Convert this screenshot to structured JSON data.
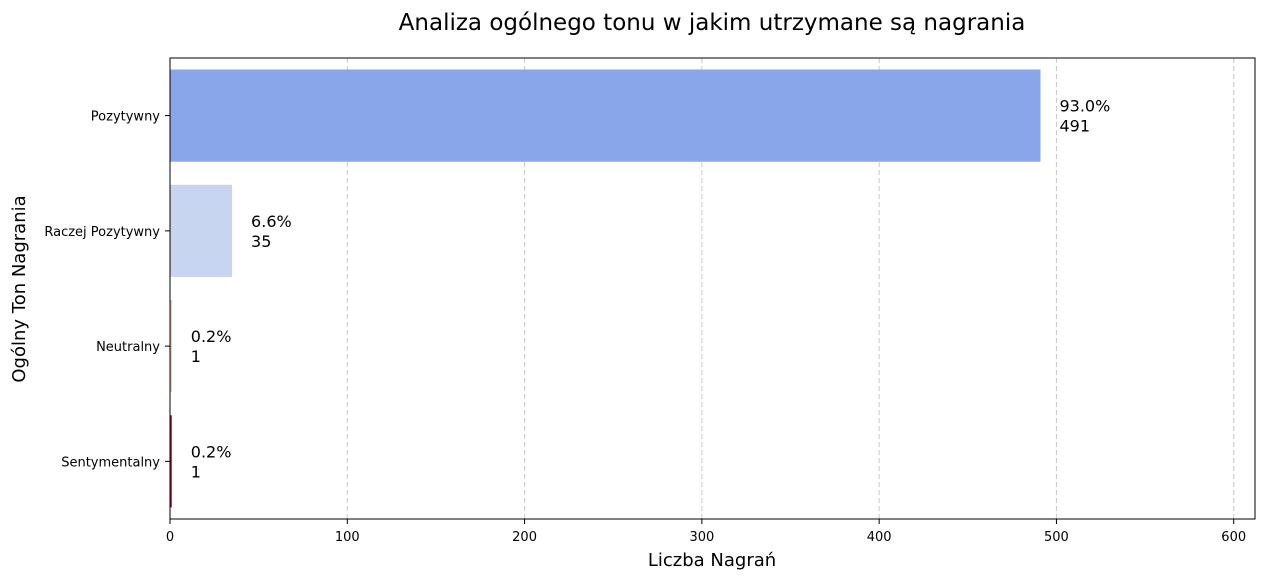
{
  "chart_data": {
    "type": "bar",
    "orientation": "horizontal",
    "title": "Analiza ogólnego tonu w jakim utrzymane są nagrania",
    "xlabel": "Liczba Nagrań",
    "ylabel": "Ogólny Ton Nagrania",
    "xlim": [
      0,
      612
    ],
    "xticks": [
      "0",
      "100",
      "200",
      "300",
      "400",
      "500",
      "600"
    ],
    "grid": "x, dashed",
    "categories": [
      "Pozytywny",
      "Raczej Pozytywny",
      "Neutralny",
      "Sentymentalny"
    ],
    "values": [
      491,
      35,
      1,
      1
    ],
    "percent_labels": [
      "93.0%",
      "6.6%",
      "0.2%",
      "0.2%"
    ],
    "count_labels": [
      "491",
      "35",
      "1",
      "1"
    ],
    "colors": [
      "#88a6e9",
      "#c7d5f1",
      "#e8bfa9",
      "#b40426"
    ]
  }
}
